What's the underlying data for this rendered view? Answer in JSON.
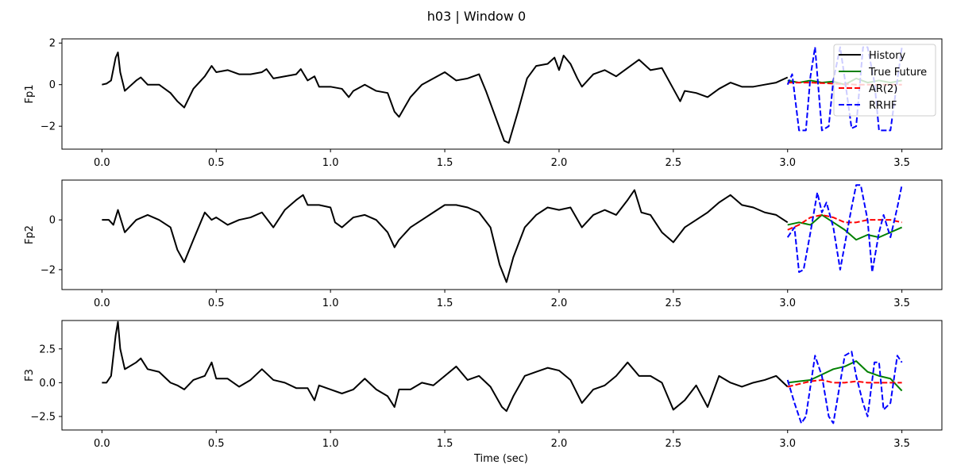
{
  "chart_data": {
    "type": "line",
    "title": "h03 | Window 0",
    "xlabel": "Time (sec)",
    "xlim": [
      -0.175,
      3.675
    ],
    "x_ticks": [
      0.0,
      0.5,
      1.0,
      1.5,
      2.0,
      2.5,
      3.0,
      3.5
    ],
    "x_tick_labels": [
      "0.0",
      "0.5",
      "1.0",
      "1.5",
      "2.0",
      "2.5",
      "3.0",
      "3.5"
    ],
    "legend": {
      "placement": "top-right",
      "entries": [
        {
          "label": "History",
          "color": "#000000",
          "dash": "solid"
        },
        {
          "label": "True Future",
          "color": "#008000",
          "dash": "solid"
        },
        {
          "label": "AR(2)",
          "color": "#ff0000",
          "dash": "dashed"
        },
        {
          "label": "RRHF",
          "color": "#0000ff",
          "dash": "dashed"
        }
      ]
    },
    "panels": [
      {
        "ylabel": "Fp1",
        "ylim": [
          -3.1,
          2.2
        ],
        "y_ticks": [
          -2,
          0,
          2
        ],
        "y_tick_labels": [
          "−2",
          "0",
          "2"
        ],
        "series": [
          {
            "name": "History",
            "color": "#000000",
            "dash": "solid",
            "x": [
              0.0,
              0.02,
              0.04,
              0.06,
              0.07,
              0.08,
              0.1,
              0.12,
              0.15,
              0.17,
              0.2,
              0.25,
              0.3,
              0.33,
              0.36,
              0.4,
              0.45,
              0.48,
              0.5,
              0.55,
              0.6,
              0.65,
              0.7,
              0.72,
              0.75,
              0.8,
              0.85,
              0.87,
              0.9,
              0.93,
              0.95,
              1.0,
              1.05,
              1.08,
              1.1,
              1.15,
              1.2,
              1.25,
              1.28,
              1.3,
              1.35,
              1.4,
              1.45,
              1.5,
              1.55,
              1.6,
              1.65,
              1.68,
              1.72,
              1.76,
              1.78,
              1.82,
              1.86,
              1.9,
              1.95,
              1.98,
              2.0,
              2.02,
              2.05,
              2.08,
              2.1,
              2.15,
              2.2,
              2.25,
              2.3,
              2.35,
              2.4,
              2.45,
              2.5,
              2.53,
              2.55,
              2.6,
              2.65,
              2.7,
              2.75,
              2.8,
              2.85,
              2.9,
              2.95,
              3.0
            ],
            "y": [
              0.0,
              0.05,
              0.2,
              1.3,
              1.55,
              0.6,
              -0.3,
              -0.1,
              0.2,
              0.35,
              0.0,
              0.0,
              -0.4,
              -0.8,
              -1.1,
              -0.2,
              0.4,
              0.9,
              0.6,
              0.7,
              0.5,
              0.5,
              0.6,
              0.75,
              0.3,
              0.4,
              0.5,
              0.75,
              0.2,
              0.4,
              -0.1,
              -0.1,
              -0.2,
              -0.6,
              -0.3,
              0.0,
              -0.3,
              -0.4,
              -1.3,
              -1.55,
              -0.6,
              0.0,
              0.3,
              0.6,
              0.2,
              0.3,
              0.5,
              -0.3,
              -1.5,
              -2.7,
              -2.8,
              -1.3,
              0.3,
              0.9,
              1.0,
              1.3,
              0.7,
              1.4,
              1.0,
              0.3,
              -0.1,
              0.5,
              0.7,
              0.4,
              0.8,
              1.2,
              0.7,
              0.8,
              -0.2,
              -0.8,
              -0.3,
              -0.4,
              -0.6,
              -0.2,
              0.1,
              -0.1,
              -0.1,
              0.0,
              0.1,
              0.35
            ]
          },
          {
            "name": "True Future",
            "color": "#008000",
            "dash": "solid",
            "x": [
              3.0,
              3.05,
              3.1,
              3.15,
              3.2,
              3.25,
              3.3,
              3.35,
              3.4,
              3.45,
              3.5
            ],
            "y": [
              0.2,
              0.1,
              0.2,
              0.1,
              0.15,
              0.0,
              0.3,
              0.1,
              0.2,
              0.1,
              0.2
            ]
          },
          {
            "name": "AR(2)",
            "color": "#ff0000",
            "dash": "dashed",
            "x": [
              3.0,
              3.1,
              3.2,
              3.3,
              3.4,
              3.5
            ],
            "y": [
              0.1,
              0.1,
              0.05,
              0.0,
              0.0,
              0.0
            ]
          },
          {
            "name": "RRHF",
            "color": "#0000ff",
            "dash": "dashed",
            "x": [
              3.0,
              3.02,
              3.05,
              3.08,
              3.1,
              3.12,
              3.15,
              3.18,
              3.2,
              3.23,
              3.25,
              3.28,
              3.3,
              3.33,
              3.35,
              3.38,
              3.4,
              3.42,
              3.45,
              3.48,
              3.5
            ],
            "y": [
              0.0,
              0.5,
              -2.2,
              -2.2,
              0.4,
              1.8,
              -2.2,
              -2.0,
              0.2,
              1.8,
              0.3,
              -2.1,
              -2.0,
              1.8,
              1.8,
              0.1,
              -2.2,
              -2.2,
              -2.2,
              0.2,
              1.8
            ]
          }
        ]
      },
      {
        "ylabel": "Fp2",
        "ylim": [
          -2.8,
          1.6
        ],
        "y_ticks": [
          -2,
          0
        ],
        "y_tick_labels": [
          "−2",
          "0"
        ],
        "series": [
          {
            "name": "History",
            "color": "#000000",
            "dash": "solid",
            "x": [
              0.0,
              0.03,
              0.05,
              0.07,
              0.1,
              0.15,
              0.2,
              0.25,
              0.3,
              0.33,
              0.36,
              0.4,
              0.45,
              0.48,
              0.5,
              0.55,
              0.6,
              0.65,
              0.7,
              0.75,
              0.8,
              0.85,
              0.88,
              0.9,
              0.95,
              1.0,
              1.02,
              1.05,
              1.1,
              1.15,
              1.2,
              1.25,
              1.28,
              1.3,
              1.35,
              1.4,
              1.45,
              1.5,
              1.55,
              1.6,
              1.65,
              1.7,
              1.74,
              1.77,
              1.8,
              1.85,
              1.9,
              1.95,
              2.0,
              2.05,
              2.1,
              2.15,
              2.2,
              2.25,
              2.3,
              2.33,
              2.36,
              2.4,
              2.45,
              2.5,
              2.55,
              2.6,
              2.65,
              2.7,
              2.75,
              2.8,
              2.85,
              2.9,
              2.95,
              3.0
            ],
            "y": [
              0.0,
              0.0,
              -0.2,
              0.4,
              -0.5,
              0.0,
              0.2,
              0.0,
              -0.3,
              -1.2,
              -1.7,
              -0.8,
              0.3,
              0.0,
              0.1,
              -0.2,
              0.0,
              0.1,
              0.3,
              -0.3,
              0.4,
              0.8,
              1.0,
              0.6,
              0.6,
              0.5,
              -0.1,
              -0.3,
              0.1,
              0.2,
              0.0,
              -0.5,
              -1.1,
              -0.8,
              -0.3,
              0.0,
              0.3,
              0.6,
              0.6,
              0.5,
              0.3,
              -0.3,
              -1.8,
              -2.5,
              -1.5,
              -0.3,
              0.2,
              0.5,
              0.4,
              0.5,
              -0.3,
              0.2,
              0.4,
              0.2,
              0.8,
              1.2,
              0.3,
              0.2,
              -0.5,
              -0.9,
              -0.3,
              0.0,
              0.3,
              0.7,
              1.0,
              0.6,
              0.5,
              0.3,
              0.2,
              -0.1
            ]
          },
          {
            "name": "True Future",
            "color": "#008000",
            "dash": "solid",
            "x": [
              3.0,
              3.05,
              3.1,
              3.15,
              3.2,
              3.25,
              3.3,
              3.35,
              3.4,
              3.45,
              3.5
            ],
            "y": [
              -0.2,
              -0.1,
              -0.2,
              0.2,
              -0.1,
              -0.4,
              -0.8,
              -0.6,
              -0.7,
              -0.5,
              -0.3
            ]
          },
          {
            "name": "AR(2)",
            "color": "#ff0000",
            "dash": "dashed",
            "x": [
              3.0,
              3.05,
              3.1,
              3.15,
              3.2,
              3.25,
              3.3,
              3.35,
              3.4,
              3.45,
              3.5
            ],
            "y": [
              -0.4,
              -0.2,
              0.1,
              0.2,
              0.1,
              -0.1,
              -0.1,
              0.0,
              0.0,
              0.0,
              -0.1
            ]
          },
          {
            "name": "RRHF",
            "color": "#0000ff",
            "dash": "dashed",
            "x": [
              3.0,
              3.03,
              3.05,
              3.07,
              3.1,
              3.13,
              3.15,
              3.17,
              3.2,
              3.23,
              3.25,
              3.28,
              3.3,
              3.32,
              3.35,
              3.37,
              3.4,
              3.42,
              3.45,
              3.48,
              3.5
            ],
            "y": [
              -0.7,
              -0.3,
              -2.1,
              -2.0,
              -0.5,
              1.1,
              0.3,
              0.7,
              -0.3,
              -2.0,
              -1.0,
              0.5,
              1.4,
              1.4,
              0.0,
              -2.1,
              -0.5,
              0.2,
              -0.7,
              0.5,
              1.4
            ]
          }
        ]
      },
      {
        "ylabel": "F3",
        "ylim": [
          -3.5,
          4.6
        ],
        "y_ticks": [
          -2.5,
          0.0,
          2.5
        ],
        "y_tick_labels": [
          "−2.5",
          "0.0",
          "2.5"
        ],
        "series": [
          {
            "name": "History",
            "color": "#000000",
            "dash": "solid",
            "x": [
              0.0,
              0.02,
              0.04,
              0.06,
              0.07,
              0.08,
              0.1,
              0.15,
              0.17,
              0.2,
              0.25,
              0.3,
              0.33,
              0.36,
              0.4,
              0.45,
              0.48,
              0.5,
              0.55,
              0.6,
              0.65,
              0.7,
              0.75,
              0.8,
              0.85,
              0.9,
              0.93,
              0.95,
              1.0,
              1.05,
              1.1,
              1.15,
              1.2,
              1.25,
              1.28,
              1.3,
              1.35,
              1.4,
              1.45,
              1.5,
              1.55,
              1.6,
              1.65,
              1.7,
              1.75,
              1.77,
              1.8,
              1.85,
              1.9,
              1.95,
              2.0,
              2.05,
              2.1,
              2.15,
              2.2,
              2.25,
              2.3,
              2.35,
              2.4,
              2.45,
              2.5,
              2.55,
              2.6,
              2.65,
              2.7,
              2.75,
              2.8,
              2.85,
              2.9,
              2.95,
              3.0
            ],
            "y": [
              0.0,
              0.0,
              0.5,
              3.5,
              4.5,
              2.5,
              1.0,
              1.5,
              1.8,
              1.0,
              0.8,
              0.0,
              -0.2,
              -0.5,
              0.2,
              0.5,
              1.5,
              0.3,
              0.3,
              -0.3,
              0.2,
              1.0,
              0.2,
              0.0,
              -0.4,
              -0.4,
              -1.3,
              -0.2,
              -0.5,
              -0.8,
              -0.5,
              0.3,
              -0.5,
              -1.0,
              -1.8,
              -0.5,
              -0.5,
              0.0,
              -0.2,
              0.5,
              1.2,
              0.2,
              0.5,
              -0.3,
              -1.8,
              -2.1,
              -1.0,
              0.5,
              0.8,
              1.1,
              0.9,
              0.2,
              -1.5,
              -0.5,
              -0.2,
              0.5,
              1.5,
              0.5,
              0.5,
              0.0,
              -2.0,
              -1.3,
              -0.2,
              -1.8,
              0.5,
              0.0,
              -0.3,
              0.0,
              0.2,
              0.5,
              -0.3
            ]
          },
          {
            "name": "True Future",
            "color": "#008000",
            "dash": "solid",
            "x": [
              3.0,
              3.05,
              3.1,
              3.15,
              3.2,
              3.25,
              3.3,
              3.35,
              3.4,
              3.45,
              3.5
            ],
            "y": [
              0.0,
              0.1,
              0.2,
              0.6,
              1.0,
              1.2,
              1.6,
              0.8,
              0.5,
              0.3,
              -0.6
            ]
          },
          {
            "name": "AR(2)",
            "color": "#ff0000",
            "dash": "dashed",
            "x": [
              3.0,
              3.05,
              3.1,
              3.15,
              3.2,
              3.25,
              3.3,
              3.35,
              3.4,
              3.45,
              3.5
            ],
            "y": [
              -0.3,
              -0.1,
              0.1,
              0.2,
              0.0,
              0.0,
              0.1,
              0.0,
              0.0,
              0.0,
              0.0
            ]
          },
          {
            "name": "RRHF",
            "color": "#0000ff",
            "dash": "dashed",
            "x": [
              3.0,
              3.03,
              3.06,
              3.08,
              3.12,
              3.15,
              3.18,
              3.2,
              3.22,
              3.25,
              3.28,
              3.3,
              3.33,
              3.35,
              3.38,
              3.4,
              3.42,
              3.45,
              3.48,
              3.5
            ],
            "y": [
              0.2,
              -1.5,
              -3.0,
              -2.5,
              2.0,
              0.5,
              -2.5,
              -3.0,
              -1.0,
              2.0,
              2.3,
              0.5,
              -1.5,
              -2.5,
              1.5,
              1.5,
              -2.0,
              -1.5,
              2.0,
              1.5
            ]
          }
        ]
      }
    ]
  }
}
